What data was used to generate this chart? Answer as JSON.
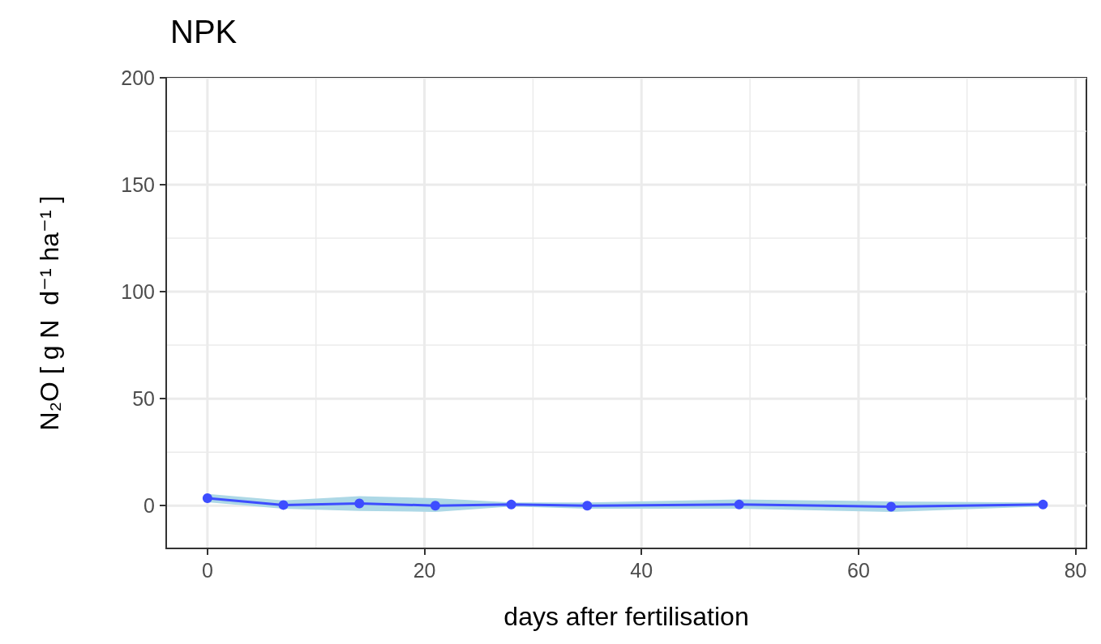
{
  "chart_data": {
    "type": "line",
    "title": "NPK",
    "xlabel": "days after fertilisation",
    "ylabel": "N₂O [ g N  d⁻¹ ha⁻¹ ]",
    "x": [
      0,
      7,
      14,
      21,
      28,
      35,
      49,
      63,
      77
    ],
    "series": [
      {
        "color": "#3d4dff",
        "values": [
          3.5,
          0.3,
          1,
          0,
          0.5,
          0,
          0.5,
          -0.5,
          0.5
        ],
        "lower": [
          2.5,
          -0.5,
          -1.5,
          -2,
          0.5,
          -0.5,
          -0.5,
          -2,
          0.5
        ],
        "upper": [
          4.5,
          1.5,
          3.5,
          2.5,
          0.5,
          0.5,
          2,
          1,
          0.5
        ]
      }
    ],
    "xlim": [
      -3.8,
      81
    ],
    "xticks": [
      0,
      20,
      40,
      60,
      80
    ],
    "ylim": [
      -20,
      200
    ],
    "yticks": [
      0,
      50,
      100,
      150,
      200
    ],
    "grid": true,
    "marker": "circle",
    "line_style": "solid"
  }
}
